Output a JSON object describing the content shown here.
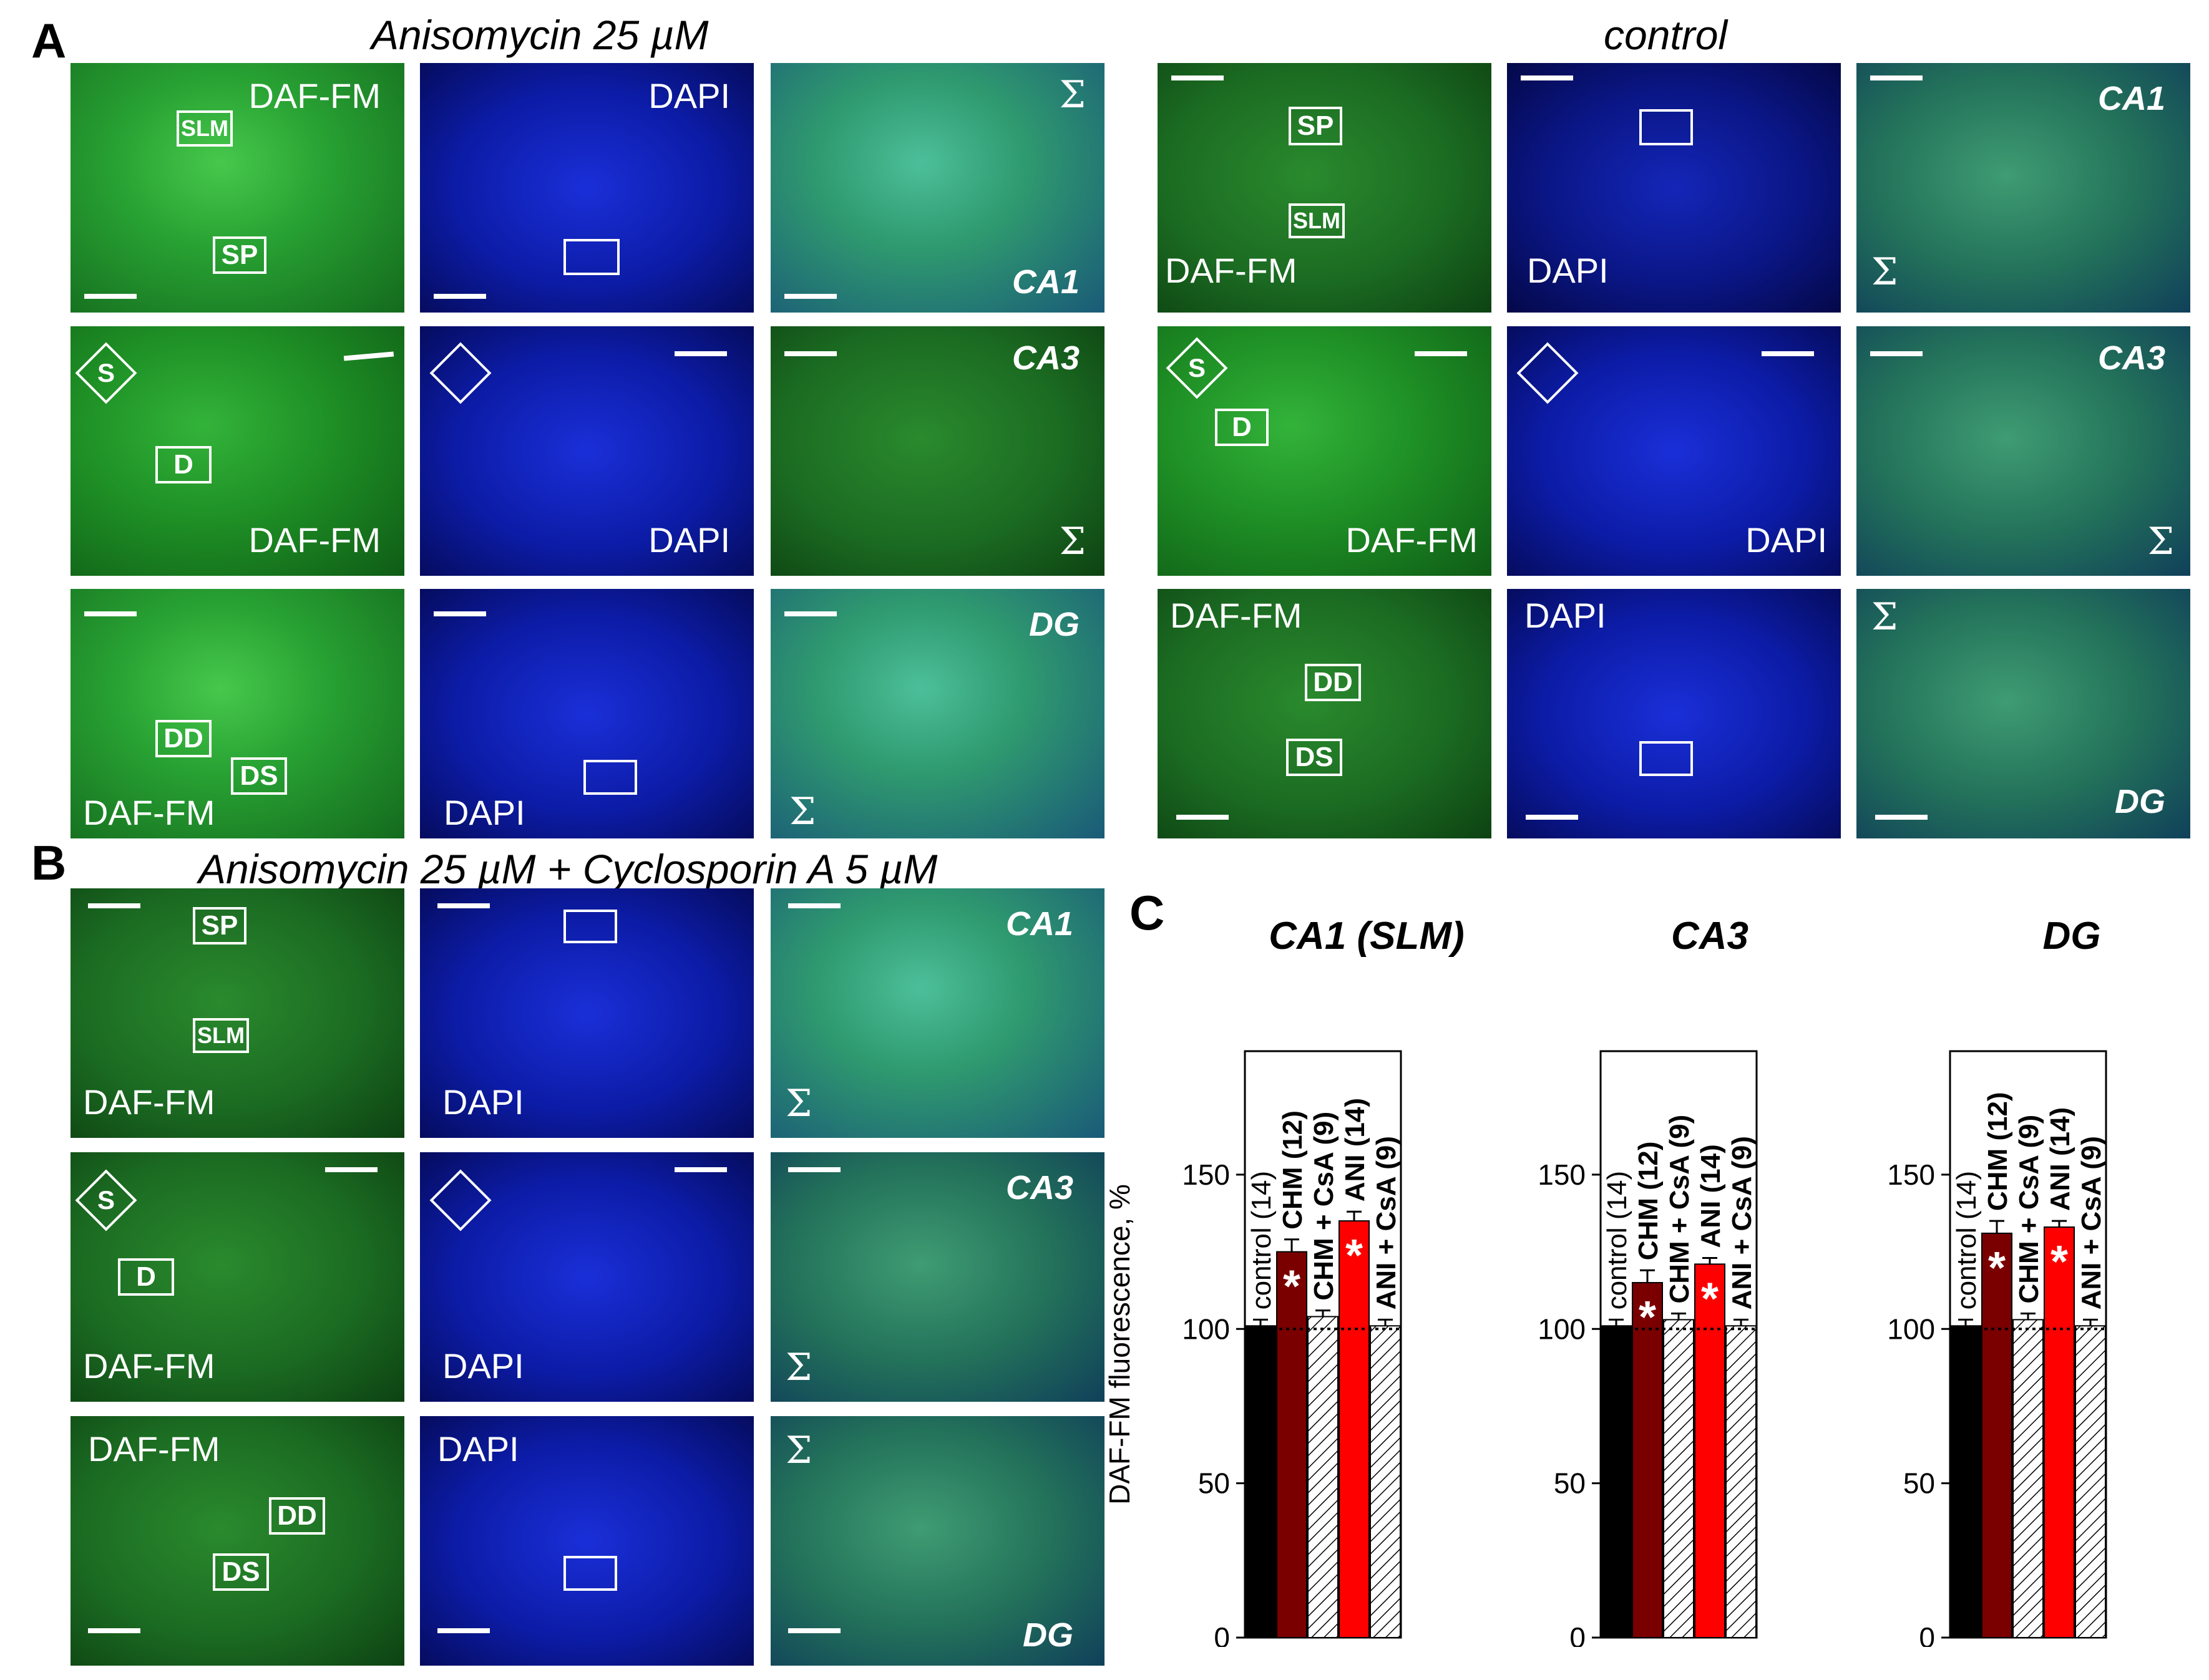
{
  "panels": {
    "A": {
      "letter": "A",
      "title_left": "Anisomycin 25 µM",
      "title_right": "control"
    },
    "B": {
      "letter": "B",
      "title": "Anisomycin 25 µM + Cyclosporin A 5 µM"
    },
    "C": {
      "letter": "C"
    }
  },
  "labels": {
    "daf": "DAF-FM",
    "dapi": "DAPI",
    "sigma": "Σ",
    "ca1": "CA1",
    "ca3": "CA3",
    "dg": "DG",
    "roi_slm": "SLM",
    "roi_sp": "SP",
    "roi_s": "S",
    "roi_d": "D",
    "roi_dd": "DD",
    "roi_ds": "DS"
  },
  "colors": {
    "control": "#000000",
    "chm": "#7a0000",
    "chm_csa": "#ffffff",
    "ani": "#ff0000",
    "ani_csa": "#ffffff",
    "significance_marker": "#ffffff"
  },
  "chart_data": [
    {
      "type": "bar",
      "title": "CA1 (SLM)",
      "ylabel": "DAF-FM fluorescence, %",
      "ylim": [
        0,
        190
      ],
      "yticks": [
        0,
        50,
        100,
        150
      ],
      "reference_line": 100,
      "categories": [
        "control (14)",
        "CHM (12)",
        "CHM + CsA (9)",
        "ANI (14)",
        "ANI + CsA (9)"
      ],
      "values": [
        101,
        125,
        104,
        135,
        101
      ],
      "errors": [
        2,
        4,
        2,
        3,
        2
      ],
      "significant": [
        false,
        true,
        false,
        true,
        false
      ],
      "significance_marker": "*",
      "hatched": [
        false,
        false,
        true,
        false,
        true
      ]
    },
    {
      "type": "bar",
      "title": "CA3",
      "ylabel": "",
      "ylim": [
        0,
        190
      ],
      "yticks": [
        0,
        50,
        100,
        150
      ],
      "reference_line": 100,
      "categories": [
        "control (14)",
        "CHM (12)",
        "CHM + CsA (9)",
        "ANI (14)",
        "ANI + CsA (9)"
      ],
      "values": [
        101,
        115,
        103,
        121,
        101
      ],
      "errors": [
        2,
        4,
        2,
        2,
        2
      ],
      "significant": [
        false,
        true,
        false,
        true,
        false
      ],
      "significance_marker": "*",
      "hatched": [
        false,
        false,
        true,
        false,
        true
      ]
    },
    {
      "type": "bar",
      "title": "DG",
      "ylabel": "",
      "ylim": [
        0,
        190
      ],
      "yticks": [
        0,
        50,
        100,
        150
      ],
      "reference_line": 100,
      "categories": [
        "control (14)",
        "CHM (12)",
        "CHM + CsA (9)",
        "ANI (14)",
        "ANI + CsA (9)"
      ],
      "values": [
        101,
        131,
        103,
        133,
        101
      ],
      "errors": [
        2,
        4,
        2,
        2,
        2
      ],
      "significant": [
        false,
        true,
        false,
        true,
        false
      ],
      "significance_marker": "*",
      "hatched": [
        false,
        false,
        true,
        false,
        true
      ]
    }
  ]
}
